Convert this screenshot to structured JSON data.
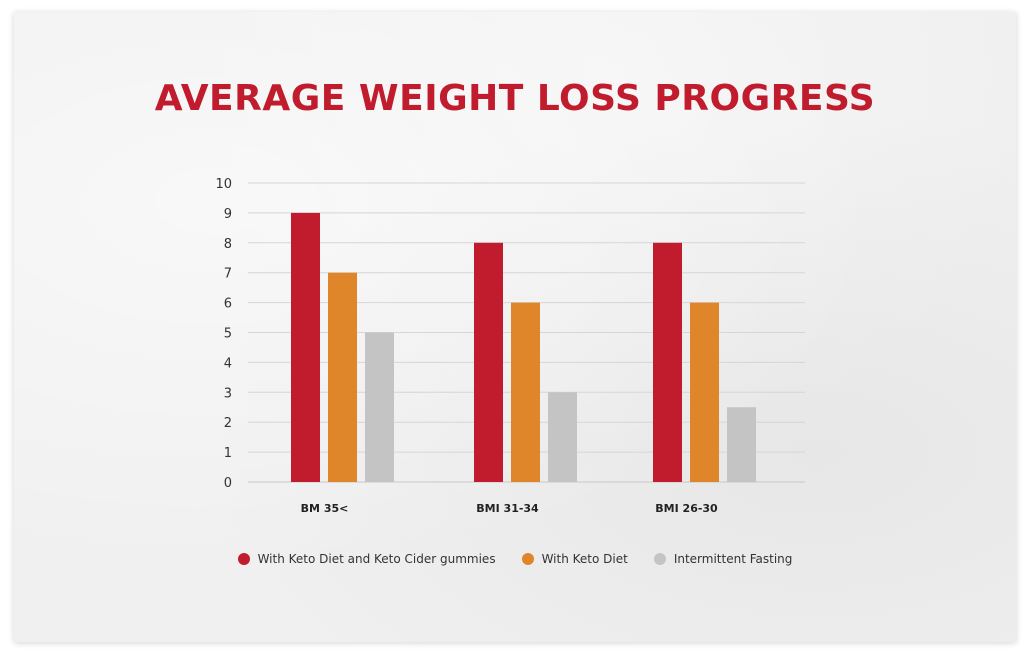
{
  "chart_data": {
    "type": "bar",
    "title": "AVERAGE WEIGHT LOSS PROGRESS",
    "xlabel": "",
    "ylabel": "",
    "categories": [
      "BM 35<",
      "BMI 31-34",
      "BMI 26-30"
    ],
    "series": [
      {
        "name": "With Keto Diet and Keto Cider gummies",
        "color": "#c01c2e",
        "values": [
          9,
          8,
          8
        ]
      },
      {
        "name": "With Keto Diet",
        "color": "#e0862a",
        "values": [
          7,
          6,
          6
        ]
      },
      {
        "name": "Intermittent Fasting",
        "color": "#c4c4c4",
        "values": [
          5,
          3,
          2.5
        ]
      }
    ],
    "ylim": [
      0,
      10
    ],
    "yticks": [
      0,
      1,
      2,
      3,
      4,
      5,
      6,
      7,
      8,
      9,
      10
    ],
    "grid": true,
    "legend_position": "bottom"
  }
}
